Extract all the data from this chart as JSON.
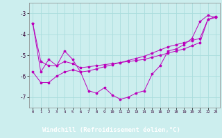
{
  "background_color": "#cceeee",
  "grid_color": "#aadddd",
  "line_color": "#bb00bb",
  "xlabel": "Windchill (Refroidissement éolien,°C)",
  "xlabel_bg": "#8800aa",
  "xlabel_fg": "#ffffff",
  "x": [
    0,
    1,
    2,
    3,
    4,
    5,
    6,
    7,
    8,
    9,
    10,
    11,
    12,
    13,
    14,
    15,
    16,
    17,
    18,
    19,
    20,
    21,
    22,
    23
  ],
  "line1": [
    -3.5,
    -5.8,
    -5.2,
    -5.5,
    -4.8,
    -5.2,
    -5.8,
    -6.7,
    -6.8,
    -6.55,
    -6.9,
    -7.1,
    -7.0,
    -6.8,
    -6.7,
    -5.9,
    -5.5,
    -4.8,
    -4.7,
    -4.5,
    -4.2,
    -3.4,
    -3.1,
    -3.2
  ],
  "line2": [
    -5.8,
    -6.3,
    -6.3,
    -6.0,
    -5.8,
    -5.7,
    -5.8,
    -5.75,
    -5.65,
    -5.55,
    -5.45,
    -5.35,
    -5.25,
    -5.15,
    -5.05,
    -4.9,
    -4.75,
    -4.6,
    -4.5,
    -4.4,
    -4.3,
    -4.2,
    -3.3,
    -3.15
  ],
  "line3": [
    -3.5,
    -5.3,
    -5.5,
    -5.5,
    -5.3,
    -5.4,
    -5.6,
    -5.55,
    -5.5,
    -5.45,
    -5.4,
    -5.35,
    -5.3,
    -5.25,
    -5.2,
    -5.1,
    -5.0,
    -4.9,
    -4.8,
    -4.7,
    -4.55,
    -4.4,
    -3.3,
    -3.2
  ],
  "ylim": [
    -7.5,
    -2.5
  ],
  "yticks": [
    -7,
    -6,
    -5,
    -4,
    -3
  ],
  "xticks": [
    0,
    1,
    2,
    3,
    4,
    5,
    6,
    7,
    8,
    9,
    10,
    11,
    12,
    13,
    14,
    15,
    16,
    17,
    18,
    19,
    20,
    21,
    22,
    23
  ]
}
